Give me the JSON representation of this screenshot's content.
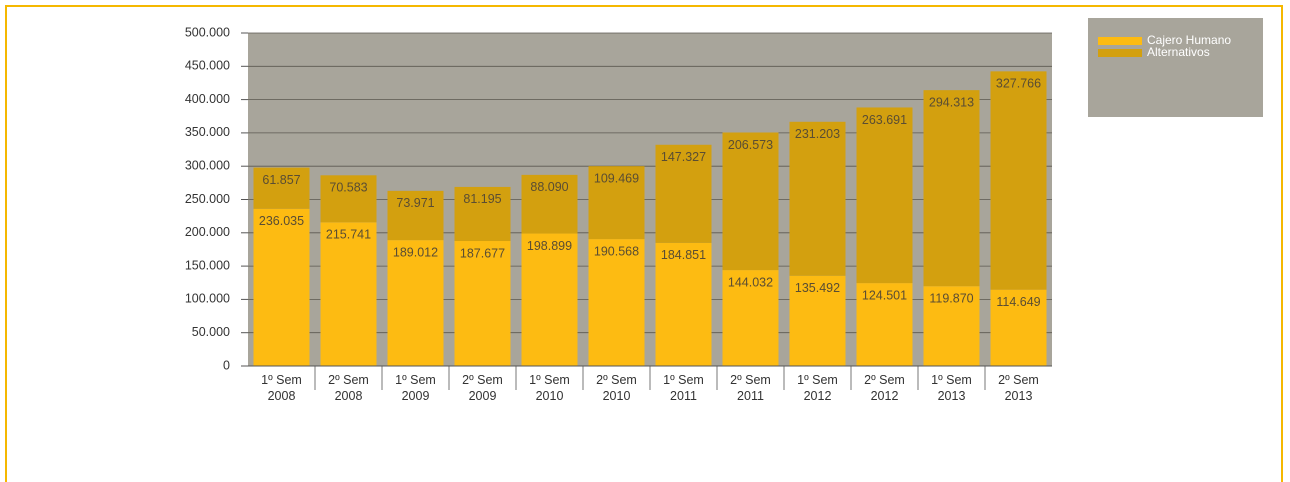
{
  "chart_data": {
    "type": "stacked_bar",
    "categories": [
      "1º Sem 2008",
      "2º Sem 2008",
      "1º Sem 2009",
      "2º Sem 2009",
      "1º Sem 2010",
      "2º Sem 2010",
      "1º Sem 2011",
      "2º Sem 2011",
      "1º Sem 2012",
      "2º Sem 2012",
      "1º Sem 2013",
      "2º Sem 2013"
    ],
    "series": [
      {
        "name": "Cajero Humano",
        "color": "#fdbb12",
        "values": [
          236035,
          215741,
          189012,
          187677,
          198899,
          190568,
          184851,
          144032,
          135492,
          124501,
          119870,
          114649
        ],
        "value_labels": [
          "236.035",
          "215.741",
          "189.012",
          "187.677",
          "198.899",
          "190.568",
          "184.851",
          "144.032",
          "135.492",
          "124.501",
          "119.870",
          "114.649"
        ]
      },
      {
        "name": "Alternativos",
        "color": "#d3a00f",
        "values": [
          61857,
          70583,
          73971,
          81195,
          88090,
          109469,
          147327,
          206573,
          231203,
          263691,
          294313,
          327766
        ],
        "value_labels": [
          "61.857",
          "70.583",
          "73.971",
          "81.195",
          "88.090",
          "109.469",
          "147.327",
          "206.573",
          "231.203",
          "263.691",
          "294.313",
          "327.766"
        ]
      }
    ],
    "ylim": [
      0,
      500000
    ],
    "yticks": [
      0,
      {
        "value": 50000,
        "label": "50.000"
      },
      {
        "value": 100000,
        "label": "100.000"
      },
      {
        "value": 150000,
        "label": "150.000"
      },
      {
        "value": 200000,
        "label": "200.000"
      },
      {
        "value": 250000,
        "label": "250.000"
      },
      {
        "value": 300000,
        "label": "300.000"
      },
      {
        "value": 350000,
        "label": "350.000"
      },
      {
        "value": 400000,
        "label": "400.000"
      },
      {
        "value": 450000,
        "label": "450.000"
      },
      {
        "value": 500000,
        "label": "500.000"
      }
    ],
    "grid": true,
    "legend": "right"
  }
}
